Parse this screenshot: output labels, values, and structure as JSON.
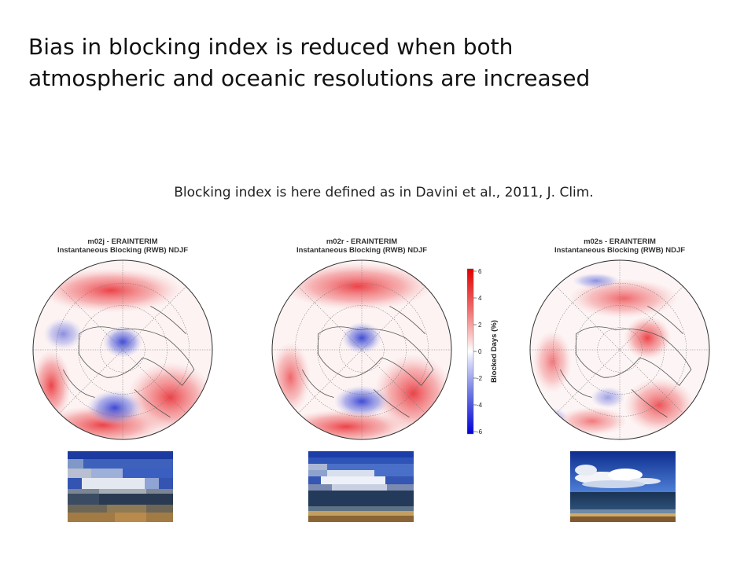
{
  "slide": {
    "title_line1": "Bias in blocking index is reduced when both",
    "title_line2": "atmospheric and oceanic resolutions are increased",
    "subtitle": "Blocking index is here defined as in Davini et al., 2011, J. Clim."
  },
  "maps": [
    {
      "model": "m02j - ERAINTERIM",
      "subtitle": "Instantaneous Blocking (RWB) NDJF"
    },
    {
      "model": "m02r - ERAINTERIM",
      "subtitle": "Instantaneous Blocking (RWB) NDJF"
    },
    {
      "model": "m02s - ERAINTERIM",
      "subtitle": "Instantaneous Blocking (RWB) NDJF"
    }
  ],
  "colorbar": {
    "label": "Blocked Days (%)",
    "ticks": [
      "6",
      "4",
      "2",
      "0",
      "-2",
      "-4",
      "-6"
    ],
    "colors": {
      "positive": "#e8242a",
      "negative": "#1d2ccf",
      "neutral": "#ffffff"
    }
  },
  "thumbnails": [
    "low-resolution-seascape",
    "medium-resolution-seascape",
    "high-resolution-seascape"
  ]
}
